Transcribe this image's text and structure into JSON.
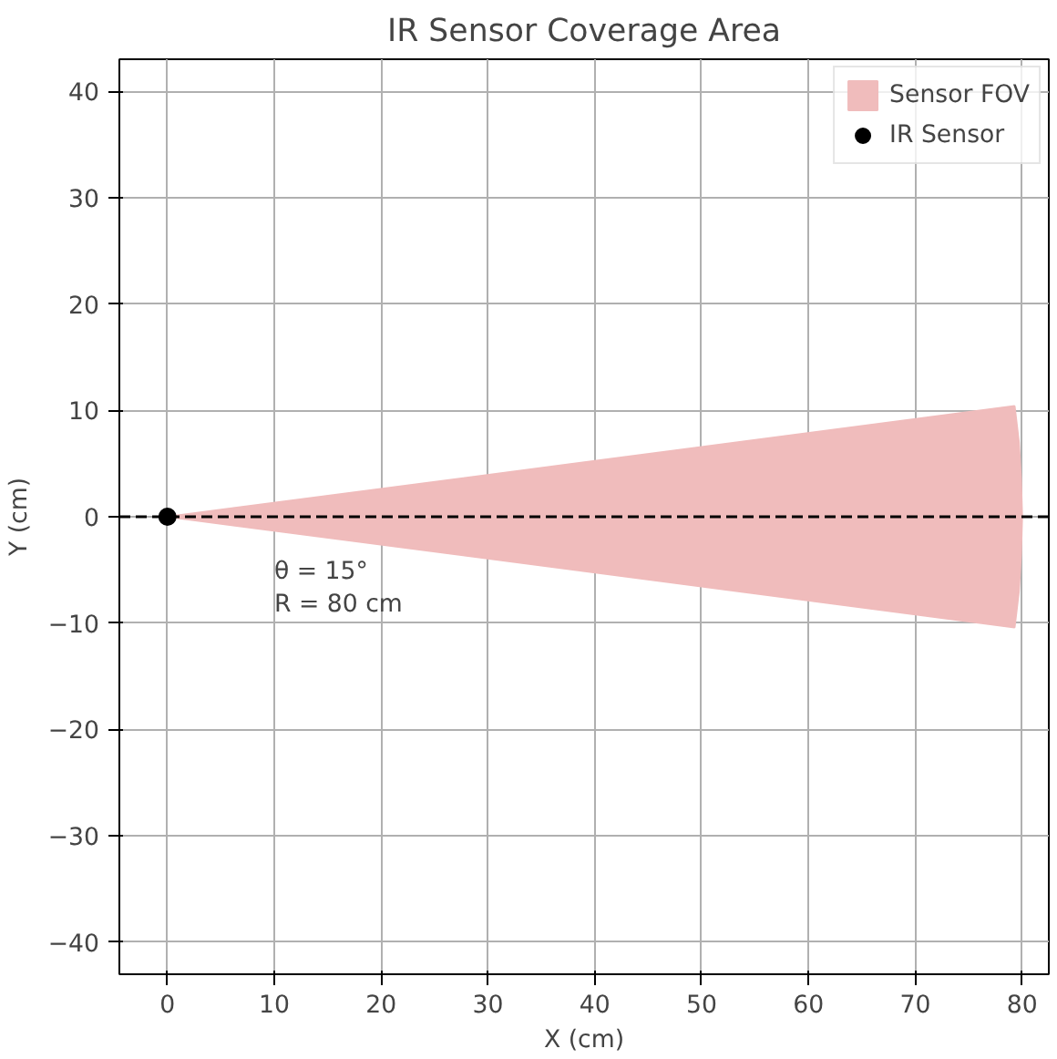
{
  "chart_data": {
    "type": "area",
    "title": "IR Sensor Coverage Area",
    "xlabel": "X (cm)",
    "ylabel": "Y (cm)",
    "series": [
      {
        "name": "Sensor FOV",
        "color": "#f0bcbc",
        "x": [
          0,
          79.3,
          79.7,
          79.9,
          80,
          79.9,
          79.7,
          79.3,
          0
        ],
        "values": [
          0,
          10.4,
          7,
          3.5,
          0,
          -3.5,
          -7,
          -10.4,
          0
        ]
      },
      {
        "name": "IR Sensor",
        "type": "scatter",
        "marker": "circle",
        "color": "#000000",
        "x": [
          0
        ],
        "values": [
          0
        ]
      }
    ],
    "annotations": [
      "θ = 15°\nR = 80 cm"
    ],
    "xlim": [
      -4.5,
      82.5
    ],
    "ylim": [
      -43,
      43
    ],
    "xticks": [
      0,
      10,
      20,
      30,
      40,
      50,
      60,
      70,
      80
    ],
    "yticks": [
      -40,
      -30,
      -20,
      -10,
      0,
      10,
      20,
      30,
      40
    ],
    "ref_lines": [
      {
        "axis": "y",
        "value": 0,
        "color": "#000000",
        "line_style": "dashed"
      }
    ],
    "grid": true,
    "legend": "top right"
  }
}
